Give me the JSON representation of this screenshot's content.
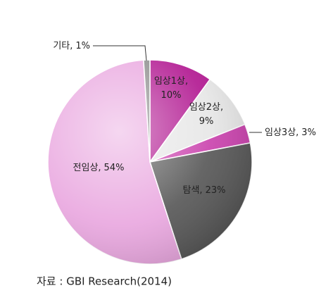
{
  "chart_data": {
    "type": "pie",
    "categories": [
      "임상1상,",
      "임상2상,",
      "임상3상,",
      "탐색,",
      "전임상,",
      "기타,"
    ],
    "values": [
      10,
      9,
      3,
      23,
      54,
      1
    ],
    "value_labels": [
      "10%",
      "9%",
      "3%",
      "23%",
      "54%",
      "1%"
    ],
    "colors": [
      "#b0148f",
      "#e6e6e6",
      "#c93fac",
      "#555555",
      "#e9a6df",
      "#8a8a8a"
    ],
    "source": "자료 : GBI Research(2014)"
  }
}
